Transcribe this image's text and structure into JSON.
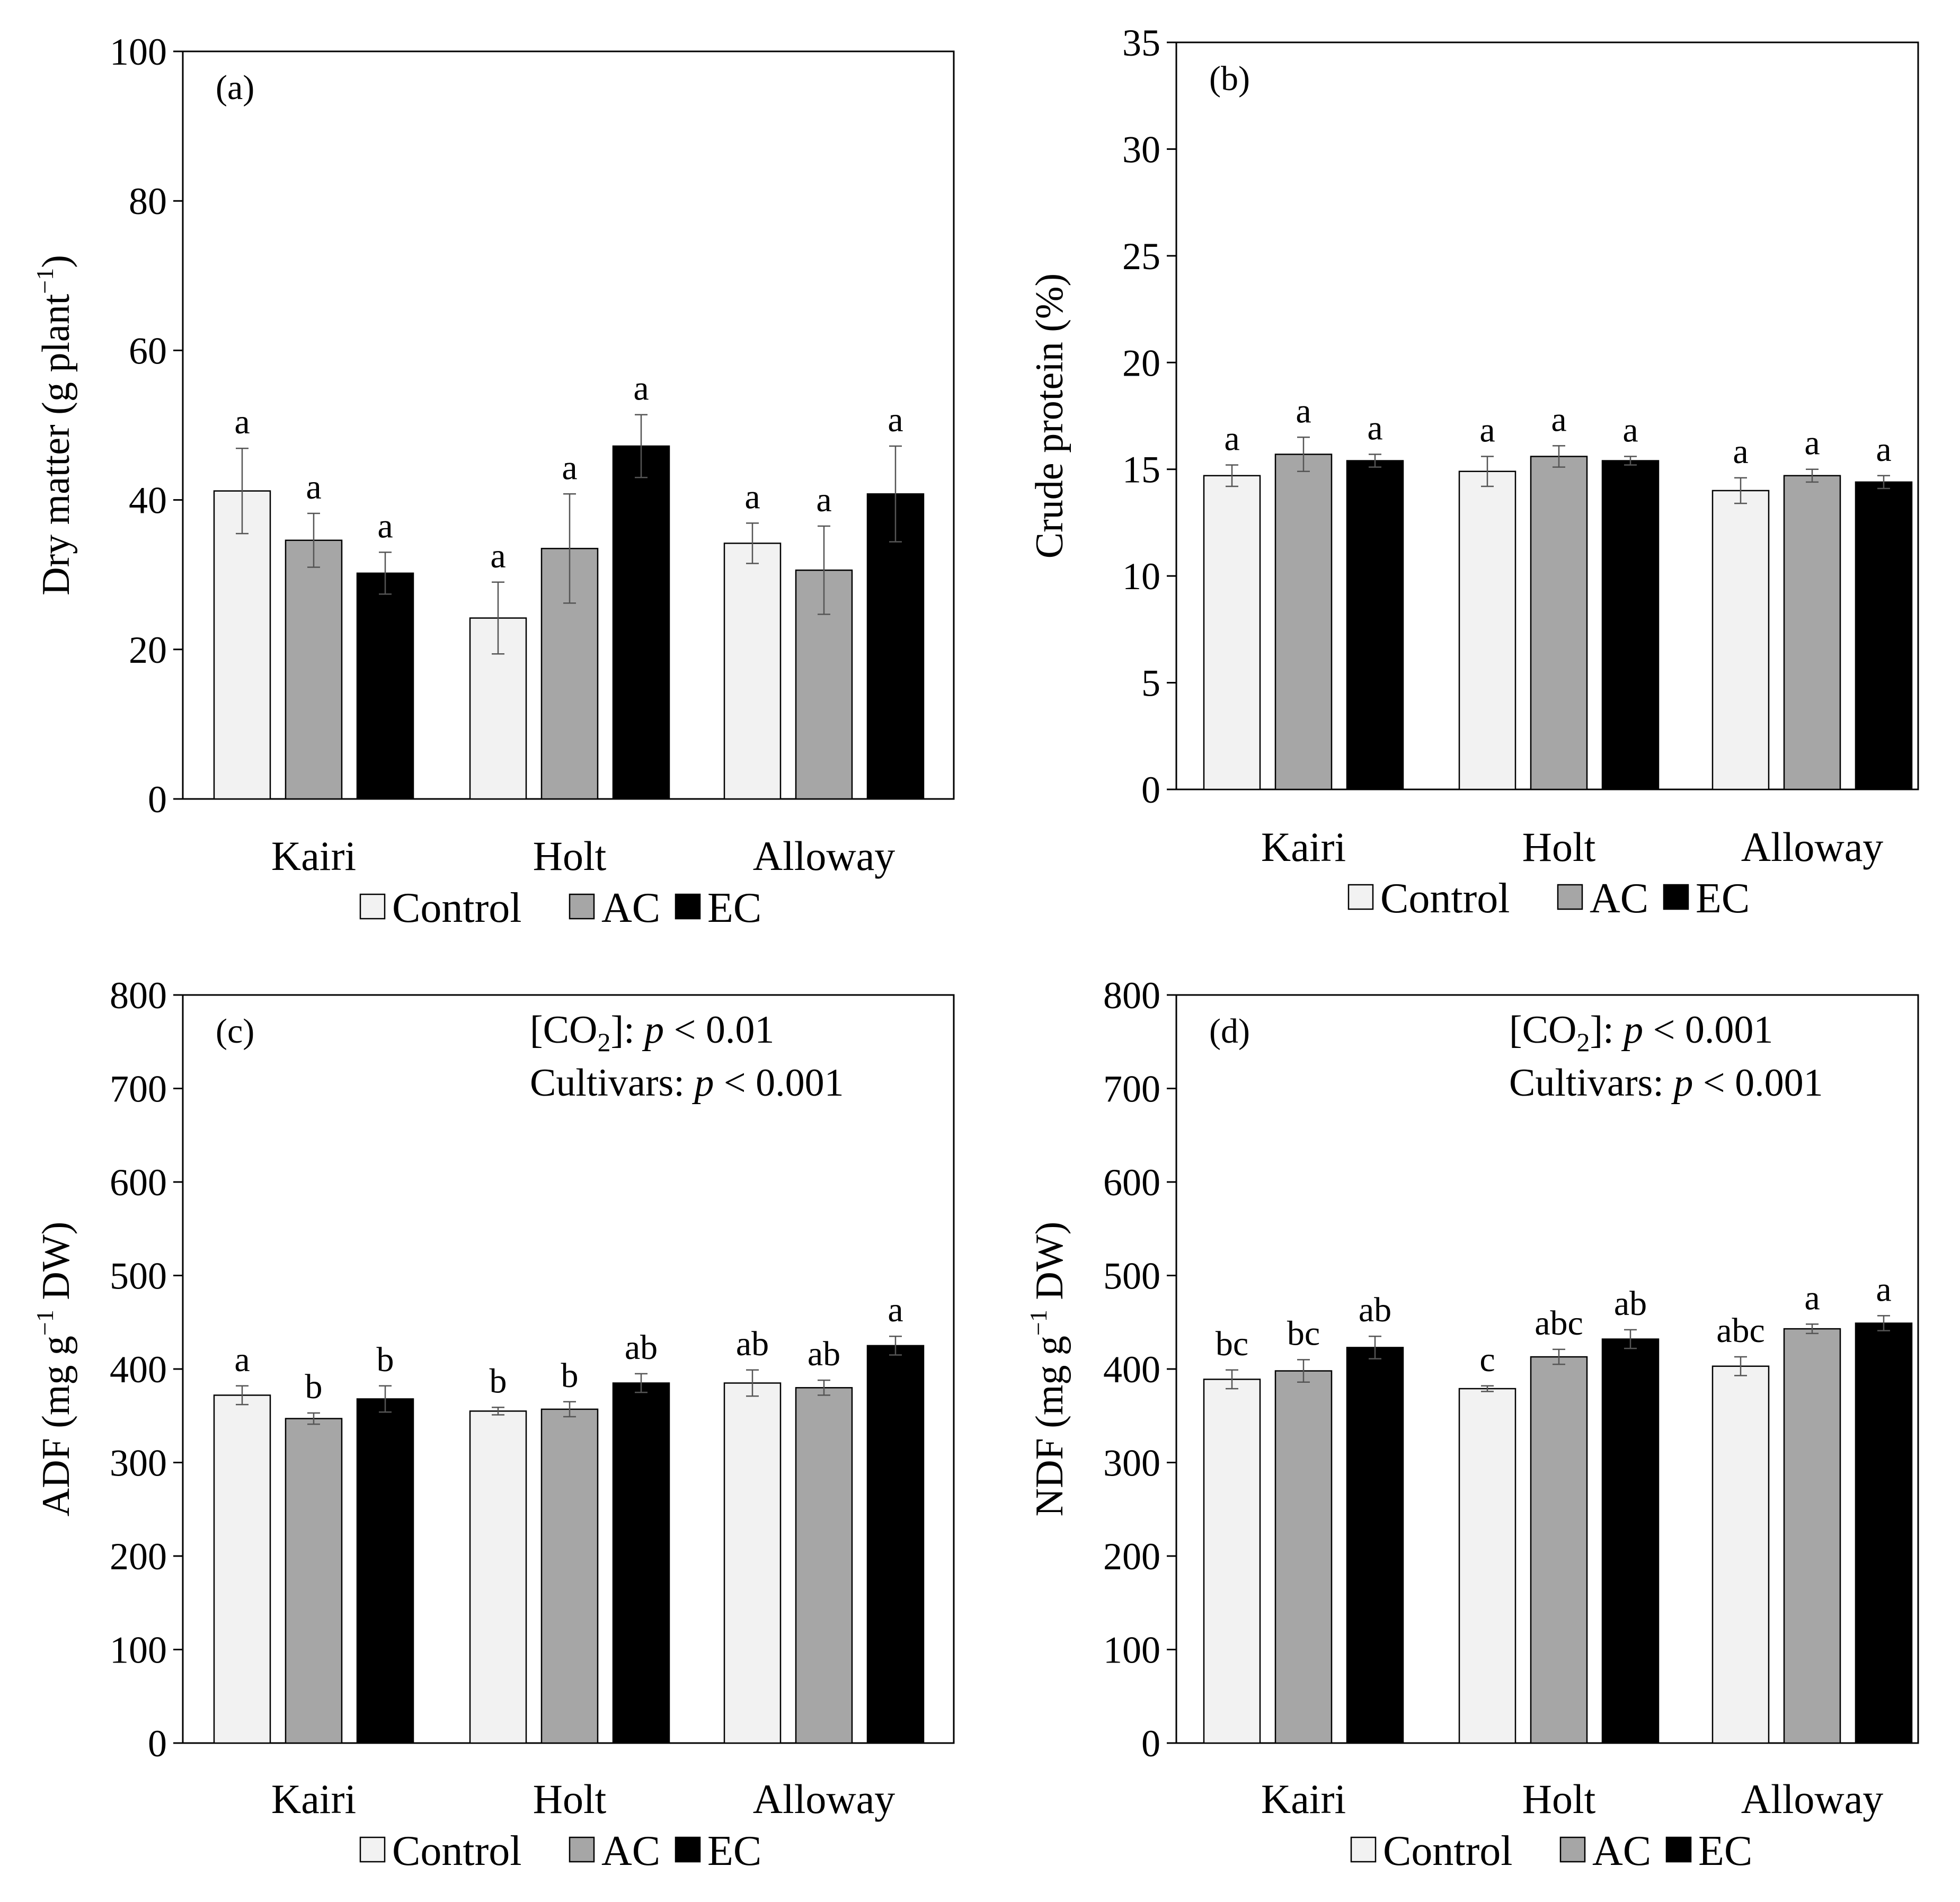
{
  "colors": {
    "Control": "#f2f2f2",
    "AC": "#a6a6a6",
    "EC": "#000000"
  },
  "legend": [
    {
      "key": "Control",
      "label": "Control"
    },
    {
      "key": "AC",
      "label": "AC"
    },
    {
      "key": "EC",
      "label": "EC"
    }
  ],
  "chart_data": [
    {
      "type": "bar",
      "panel": "(a)",
      "ylabel_main": "Dry matter (g plant",
      "ylabel_sup": "−1",
      "ylabel_end": ")",
      "ylim": [
        0,
        100
      ],
      "yticks": [
        0,
        20,
        40,
        60,
        80,
        100
      ],
      "categories": [
        "Kairi",
        "Holt",
        "Alloway"
      ],
      "series": [
        {
          "name": "Control",
          "values": [
            41.2,
            24.2,
            34.2
          ],
          "errors": [
            5.7,
            4.8,
            2.7
          ],
          "letters": [
            "a",
            "a",
            "a"
          ]
        },
        {
          "name": "AC",
          "values": [
            34.6,
            33.5,
            30.6
          ],
          "errors": [
            3.6,
            7.3,
            5.9
          ],
          "letters": [
            "a",
            "a",
            "a"
          ]
        },
        {
          "name": "EC",
          "values": [
            30.2,
            47.2,
            40.8
          ],
          "errors": [
            2.8,
            4.2,
            6.4
          ],
          "letters": [
            "a",
            "a",
            "a"
          ]
        }
      ],
      "stats": []
    },
    {
      "type": "bar",
      "panel": "(b)",
      "ylabel_main": "Crude protein (%)",
      "ylabel_sup": "",
      "ylabel_end": "",
      "ylim": [
        0,
        35
      ],
      "yticks": [
        0,
        5,
        10,
        15,
        20,
        25,
        30,
        35
      ],
      "categories": [
        "Kairi",
        "Holt",
        "Alloway"
      ],
      "series": [
        {
          "name": "Control",
          "values": [
            14.7,
            14.9,
            14.0
          ],
          "errors": [
            0.5,
            0.7,
            0.6
          ],
          "letters": [
            "a",
            "a",
            "a"
          ]
        },
        {
          "name": "AC",
          "values": [
            15.7,
            15.6,
            14.7
          ],
          "errors": [
            0.8,
            0.5,
            0.3
          ],
          "letters": [
            "a",
            "a",
            "a"
          ]
        },
        {
          "name": "EC",
          "values": [
            15.4,
            15.4,
            14.4
          ],
          "errors": [
            0.3,
            0.2,
            0.3
          ],
          "letters": [
            "a",
            "a",
            "a"
          ]
        }
      ],
      "stats": []
    },
    {
      "type": "bar",
      "panel": "(c)",
      "ylabel_main": "ADF (mg g",
      "ylabel_sup": "−1",
      "ylabel_end": " DW)",
      "ylim": [
        0,
        800
      ],
      "yticks": [
        0,
        100,
        200,
        300,
        400,
        500,
        600,
        700,
        800
      ],
      "categories": [
        "Kairi",
        "Holt",
        "Alloway"
      ],
      "series": [
        {
          "name": "Control",
          "values": [
            372,
            355,
            385
          ],
          "errors": [
            10,
            4,
            14
          ],
          "letters": [
            "a",
            "b",
            "ab"
          ]
        },
        {
          "name": "AC",
          "values": [
            347,
            357,
            380
          ],
          "errors": [
            6,
            8,
            8
          ],
          "letters": [
            "b",
            "b",
            "ab"
          ]
        },
        {
          "name": "EC",
          "values": [
            368,
            385,
            425
          ],
          "errors": [
            14,
            10,
            10
          ],
          "letters": [
            "b",
            "ab",
            "a"
          ]
        }
      ],
      "stats": [
        {
          "prefix": "[CO",
          "sub": "2",
          "mid": "]: ",
          "p": "p",
          "value": " < 0.01"
        },
        {
          "prefix": "Cultivars:  ",
          "sub": "",
          "mid": "",
          "p": "p",
          "value": " < 0.001"
        }
      ]
    },
    {
      "type": "bar",
      "panel": "(d)",
      "ylabel_main": "NDF (mg g",
      "ylabel_sup": "−1",
      "ylabel_end": " DW)",
      "ylim": [
        0,
        800
      ],
      "yticks": [
        0,
        100,
        200,
        300,
        400,
        500,
        600,
        700,
        800
      ],
      "categories": [
        "Kairi",
        "Holt",
        "Alloway"
      ],
      "series": [
        {
          "name": "Control",
          "values": [
            389,
            379,
            403
          ],
          "errors": [
            10,
            3,
            10
          ],
          "letters": [
            "bc",
            "c",
            "abc"
          ]
        },
        {
          "name": "AC",
          "values": [
            398,
            413,
            443
          ],
          "errors": [
            12,
            8,
            5
          ],
          "letters": [
            "bc",
            "abc",
            "a"
          ]
        },
        {
          "name": "EC",
          "values": [
            423,
            432,
            449
          ],
          "errors": [
            12,
            10,
            8
          ],
          "letters": [
            "ab",
            "ab",
            "a"
          ]
        }
      ],
      "stats": [
        {
          "prefix": "[CO",
          "sub": "2",
          "mid": "]: ",
          "p": "p",
          "value": " < 0.001"
        },
        {
          "prefix": "Cultivars:  ",
          "sub": "",
          "mid": "",
          "p": "p",
          "value": " < 0.001"
        }
      ]
    }
  ]
}
